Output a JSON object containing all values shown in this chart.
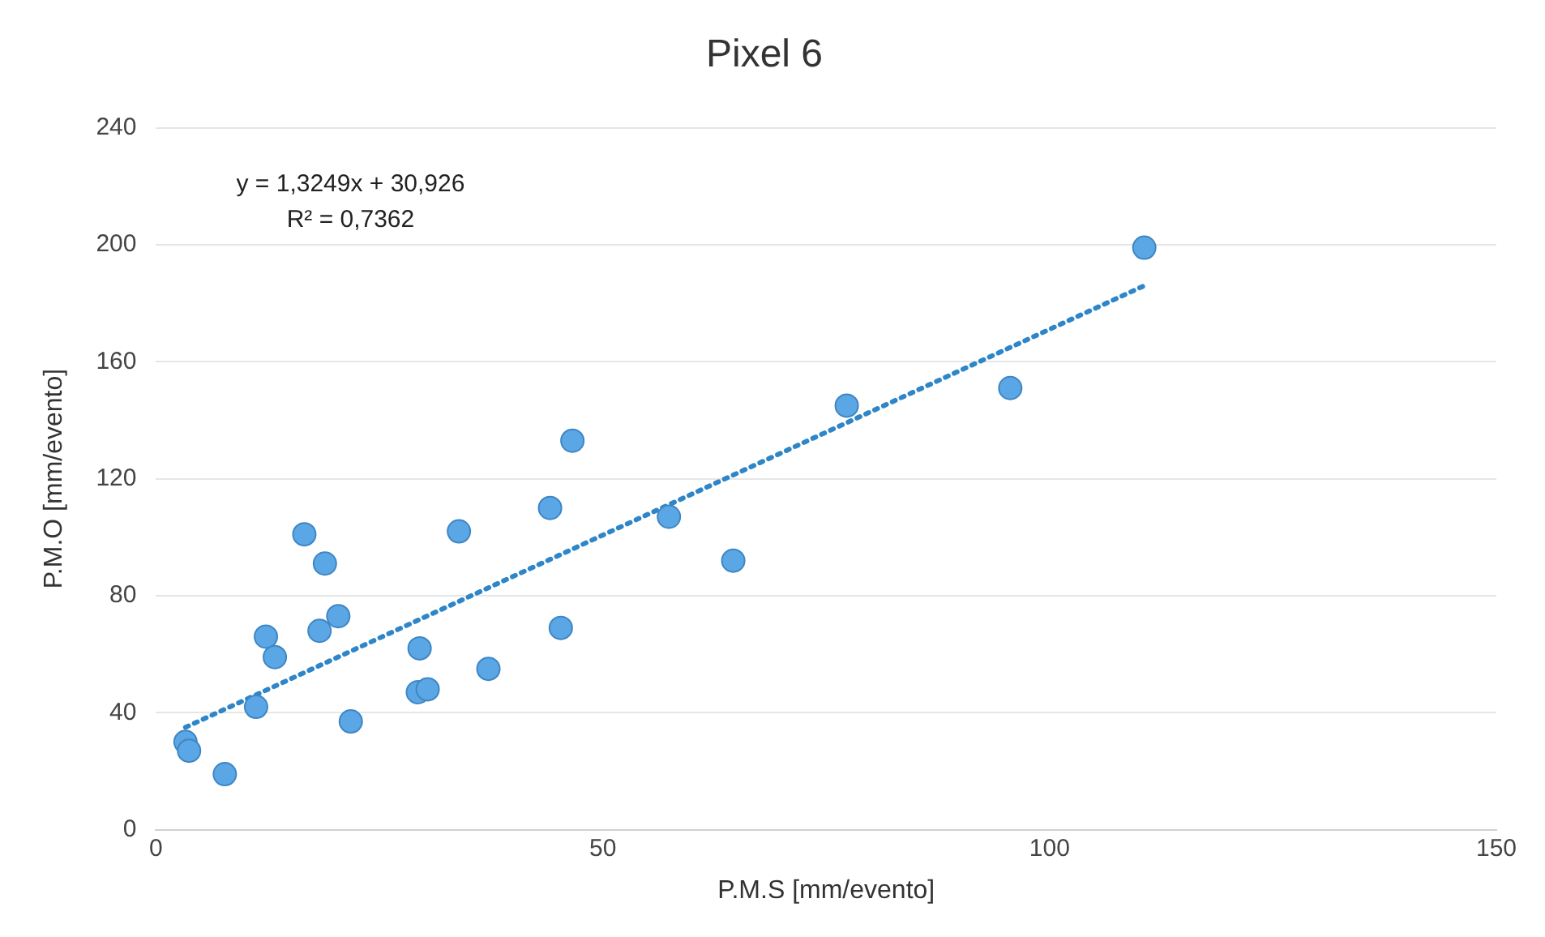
{
  "chart_data": {
    "type": "scatter",
    "title": "Pixel 6",
    "xlabel": "P.M.S [mm/evento]",
    "ylabel": "P.M.O [mm/evento]",
    "xlim": [
      0,
      150
    ],
    "xticks": [
      0,
      50,
      100,
      150
    ],
    "ylim": [
      0,
      240
    ],
    "yticks": [
      0,
      40,
      80,
      120,
      160,
      200,
      240
    ],
    "grid": "y",
    "legend": false,
    "marker": "circle",
    "annotations": [
      "y = 1,3249x + 30,926",
      "R² = 0,7362"
    ],
    "series": [
      {
        "type": "scatter",
        "color": "#5ba7e6",
        "x": [
          3.3,
          3.7,
          7.7,
          11.2,
          12.3,
          13.3,
          16.6,
          18.9,
          18.3,
          20.4,
          21.8,
          29.3,
          29.5,
          30.4,
          33.9,
          37.2,
          44.1,
          45.3,
          46.6,
          57.4,
          64.6,
          77.3,
          95.6,
          110.6
        ],
        "values": [
          30,
          27,
          19,
          42,
          66,
          59,
          101,
          91,
          68,
          73,
          37,
          47,
          62,
          48,
          102,
          55,
          110,
          69,
          133,
          107,
          92,
          145,
          151,
          199
        ]
      },
      {
        "type": "line",
        "color": "#2e86c8",
        "line_style": "dotted",
        "marker": "none",
        "x": [
          3.3,
          110.6
        ],
        "values": [
          35,
          186
        ]
      }
    ]
  }
}
